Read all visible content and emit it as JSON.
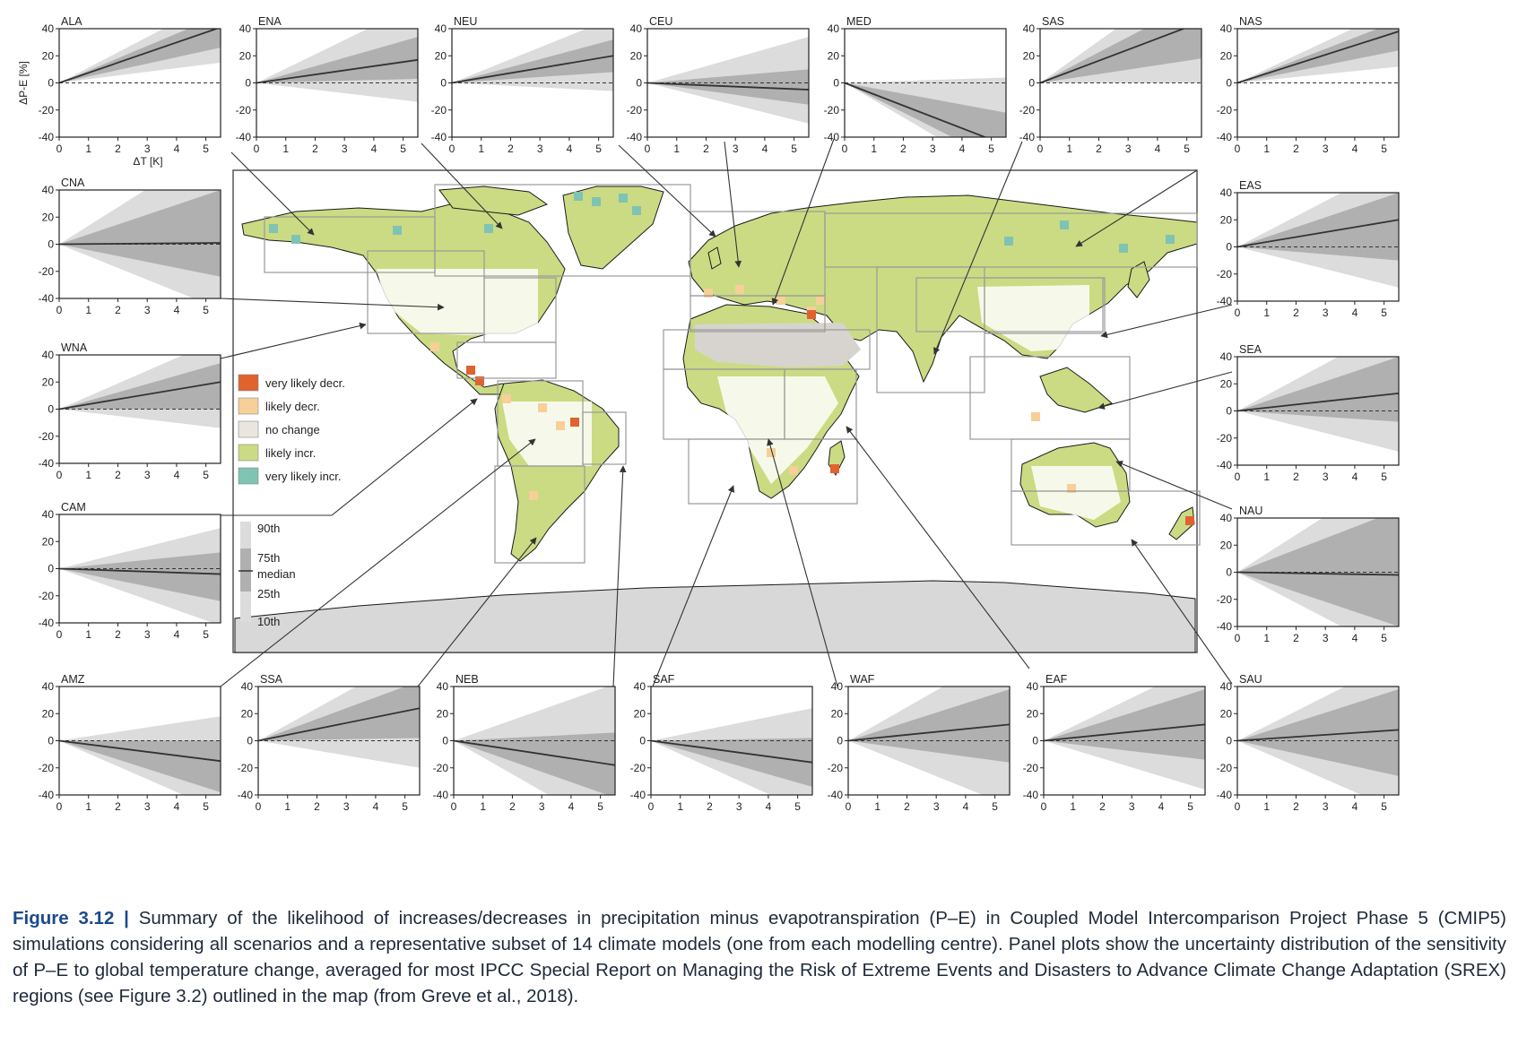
{
  "figure": {
    "label": "Figure 3.12",
    "separator": "|",
    "caption": "Summary of the likelihood of increases/decreases in precipitation minus evapotranspiration (P–E) in Coupled Model Intercomparison Project Phase 5 (CMIP5) simulations considering all scenarios and a representative subset of 14 climate models (one from each modelling centre). Panel plots show the uncertainty distribution of the sensitivity of P–E to global temperature change, averaged for most IPCC Special Report on Managing the Risk of Extreme Events and Disasters to Advance Climate Change Adaptation (SREX) regions (see Figure 3.2) outlined in the map (from Greve et al., 2018)."
  },
  "map_legend": {
    "categories": [
      {
        "label": "very likely decr.",
        "color": "#e0622f"
      },
      {
        "label": "likely decr.",
        "color": "#f7cf98"
      },
      {
        "label": "no change",
        "color": "#e9e5df"
      },
      {
        "label": "likely incr.",
        "color": "#cbdb83"
      },
      {
        "label": "very likely incr.",
        "color": "#7fc3b3"
      }
    ],
    "percentiles": [
      "90th",
      "75th",
      "median",
      "25th",
      "10th"
    ]
  },
  "colors": {
    "land_green": "#cbdb83",
    "ocean": "#ffffff",
    "antarctica": "#d8d8d8",
    "band_outer": "#dcdcdc",
    "band_inner": "#b0b0b0",
    "median": "#333333"
  },
  "chart_data": [
    {
      "type": "area",
      "region": "ALA",
      "xlabel": "ΔT [K]",
      "ylabel": "ΔP-E [%]",
      "xlim": [
        0,
        5.5
      ],
      "ylim": [
        -40,
        40
      ],
      "xticks": [
        0,
        1,
        2,
        3,
        4,
        5
      ],
      "yticks": [
        40,
        20,
        0,
        -20,
        -40
      ],
      "x": [
        0,
        5.5
      ],
      "p10": [
        0,
        15
      ],
      "p25": [
        0,
        26
      ],
      "median": [
        0,
        41
      ],
      "p75": [
        0,
        50
      ],
      "p90": [
        0,
        62
      ]
    },
    {
      "type": "area",
      "region": "ENA",
      "xlabel": "",
      "ylabel": "",
      "xlim": [
        0,
        5.5
      ],
      "ylim": [
        -40,
        40
      ],
      "xticks": [
        0,
        1,
        2,
        3,
        4,
        5
      ],
      "yticks": [
        40,
        20,
        0,
        -20,
        -40
      ],
      "x": [
        0,
        5.5
      ],
      "p10": [
        0,
        -14
      ],
      "p25": [
        0,
        3
      ],
      "median": [
        0,
        17
      ],
      "p75": [
        0,
        34
      ],
      "p90": [
        0,
        58
      ]
    },
    {
      "type": "area",
      "region": "NEU",
      "xlabel": "",
      "ylabel": "",
      "xlim": [
        0,
        5.5
      ],
      "ylim": [
        -40,
        40
      ],
      "xticks": [
        0,
        1,
        2,
        3,
        4,
        5
      ],
      "yticks": [
        40,
        20,
        0,
        -20,
        -40
      ],
      "x": [
        0,
        5.5
      ],
      "p10": [
        0,
        -6
      ],
      "p25": [
        0,
        8
      ],
      "median": [
        0,
        20
      ],
      "p75": [
        0,
        32
      ],
      "p90": [
        0,
        48
      ]
    },
    {
      "type": "area",
      "region": "CEU",
      "xlabel": "",
      "ylabel": "",
      "xlim": [
        0,
        5.5
      ],
      "ylim": [
        -40,
        40
      ],
      "xticks": [
        0,
        1,
        2,
        3,
        4,
        5
      ],
      "yticks": [
        40,
        20,
        0,
        -20,
        -40
      ],
      "x": [
        0,
        5.5
      ],
      "p10": [
        0,
        -30
      ],
      "p25": [
        0,
        -16
      ],
      "median": [
        0,
        -5
      ],
      "p75": [
        0,
        10
      ],
      "p90": [
        0,
        34
      ]
    },
    {
      "type": "area",
      "region": "MED",
      "xlabel": "",
      "ylabel": "",
      "xlim": [
        0,
        5.5
      ],
      "ylim": [
        -40,
        40
      ],
      "xticks": [
        0,
        1,
        2,
        3,
        4,
        5
      ],
      "yticks": [
        40,
        20,
        0,
        -20,
        -40
      ],
      "x": [
        0,
        5.5
      ],
      "p10": [
        0,
        -70
      ],
      "p25": [
        0,
        -60
      ],
      "median": [
        0,
        -46
      ],
      "p75": [
        0,
        -22
      ],
      "p90": [
        0,
        4
      ]
    },
    {
      "type": "area",
      "region": "SAS",
      "xlabel": "",
      "ylabel": "",
      "xlim": [
        0,
        5.5
      ],
      "ylim": [
        -40,
        40
      ],
      "xticks": [
        0,
        1,
        2,
        3,
        4,
        5
      ],
      "yticks": [
        40,
        20,
        0,
        -20,
        -40
      ],
      "x": [
        0,
        5.5
      ],
      "p10": [
        0,
        0
      ],
      "p25": [
        0,
        18
      ],
      "median": [
        0,
        45
      ],
      "p75": [
        0,
        62
      ],
      "p90": [
        0,
        85
      ]
    },
    {
      "type": "area",
      "region": "NAS",
      "xlabel": "",
      "ylabel": "",
      "xlim": [
        0,
        5.5
      ],
      "ylim": [
        -40,
        40
      ],
      "xticks": [
        0,
        1,
        2,
        3,
        4,
        5
      ],
      "yticks": [
        40,
        20,
        0,
        -20,
        -40
      ],
      "x": [
        0,
        5.5
      ],
      "p10": [
        0,
        12
      ],
      "p25": [
        0,
        24
      ],
      "median": [
        0,
        38
      ],
      "p75": [
        0,
        46
      ],
      "p90": [
        0,
        56
      ]
    },
    {
      "type": "area",
      "region": "CNA",
      "xlabel": "",
      "ylabel": "",
      "xlim": [
        0,
        5.5
      ],
      "ylim": [
        -40,
        40
      ],
      "xticks": [
        0,
        1,
        2,
        3,
        4,
        5
      ],
      "yticks": [
        40,
        20,
        0,
        -20,
        -40
      ],
      "x": [
        0,
        5.5
      ],
      "p10": [
        0,
        -48
      ],
      "p25": [
        0,
        -24
      ],
      "median": [
        0,
        1
      ],
      "p75": [
        0,
        40
      ],
      "p90": [
        0,
        75
      ]
    },
    {
      "type": "area",
      "region": "EAS",
      "xlabel": "",
      "ylabel": "",
      "xlim": [
        0,
        5.5
      ],
      "ylim": [
        -40,
        40
      ],
      "xticks": [
        0,
        1,
        2,
        3,
        4,
        5
      ],
      "yticks": [
        40,
        20,
        0,
        -20,
        -40
      ],
      "x": [
        0,
        5.5
      ],
      "p10": [
        0,
        -30
      ],
      "p25": [
        0,
        -10
      ],
      "median": [
        0,
        20
      ],
      "p75": [
        0,
        40
      ],
      "p90": [
        0,
        62
      ]
    },
    {
      "type": "area",
      "region": "WNA",
      "xlabel": "",
      "ylabel": "",
      "xlim": [
        0,
        5.5
      ],
      "ylim": [
        -40,
        40
      ],
      "xticks": [
        0,
        1,
        2,
        3,
        4,
        5
      ],
      "yticks": [
        40,
        20,
        0,
        -20,
        -40
      ],
      "x": [
        0,
        5.5
      ],
      "p10": [
        0,
        -14
      ],
      "p25": [
        0,
        0
      ],
      "median": [
        0,
        20
      ],
      "p75": [
        0,
        34
      ],
      "p90": [
        0,
        52
      ]
    },
    {
      "type": "area",
      "region": "SEA",
      "xlabel": "",
      "ylabel": "",
      "xlim": [
        0,
        5.5
      ],
      "ylim": [
        -40,
        40
      ],
      "xticks": [
        0,
        1,
        2,
        3,
        4,
        5
      ],
      "yticks": [
        40,
        20,
        0,
        -20,
        -40
      ],
      "x": [
        0,
        5.5
      ],
      "p10": [
        0,
        -30
      ],
      "p25": [
        0,
        -8
      ],
      "median": [
        0,
        13
      ],
      "p75": [
        0,
        40
      ],
      "p90": [
        0,
        64
      ]
    },
    {
      "type": "area",
      "region": "CAM",
      "xlabel": "",
      "ylabel": "",
      "xlim": [
        0,
        5.5
      ],
      "ylim": [
        -40,
        40
      ],
      "xticks": [
        0,
        1,
        2,
        3,
        4,
        5
      ],
      "yticks": [
        40,
        20,
        0,
        -20,
        -40
      ],
      "x": [
        0,
        5.5
      ],
      "p10": [
        0,
        -42
      ],
      "p25": [
        0,
        -24
      ],
      "median": [
        0,
        -4
      ],
      "p75": [
        0,
        12
      ],
      "p90": [
        0,
        30
      ]
    },
    {
      "type": "area",
      "region": "NAU",
      "xlabel": "",
      "ylabel": "",
      "xlim": [
        0,
        5.5
      ],
      "ylim": [
        -40,
        40
      ],
      "xticks": [
        0,
        1,
        2,
        3,
        4,
        5
      ],
      "yticks": [
        40,
        20,
        0,
        -20,
        -40
      ],
      "x": [
        0,
        5.5
      ],
      "p10": [
        0,
        -62
      ],
      "p25": [
        0,
        -40
      ],
      "median": [
        0,
        -2
      ],
      "p75": [
        0,
        46
      ],
      "p90": [
        0,
        76
      ]
    },
    {
      "type": "area",
      "region": "AMZ",
      "xlabel": "",
      "ylabel": "",
      "xlim": [
        0,
        5.5
      ],
      "ylim": [
        -40,
        40
      ],
      "xticks": [
        0,
        1,
        2,
        3,
        4,
        5
      ],
      "yticks": [
        40,
        20,
        0,
        -20,
        -40
      ],
      "x": [
        0,
        5.5
      ],
      "p10": [
        0,
        -52
      ],
      "p25": [
        0,
        -38
      ],
      "median": [
        0,
        -15
      ],
      "p75": [
        0,
        0
      ],
      "p90": [
        0,
        18
      ]
    },
    {
      "type": "area",
      "region": "SSA",
      "xlabel": "",
      "ylabel": "",
      "xlim": [
        0,
        5.5
      ],
      "ylim": [
        -40,
        40
      ],
      "xticks": [
        0,
        1,
        2,
        3,
        4,
        5
      ],
      "yticks": [
        40,
        20,
        0,
        -20,
        -40
      ],
      "x": [
        0,
        5.5
      ],
      "p10": [
        0,
        -20
      ],
      "p25": [
        0,
        2
      ],
      "median": [
        0,
        24
      ],
      "p75": [
        0,
        44
      ],
      "p90": [
        0,
        66
      ]
    },
    {
      "type": "area",
      "region": "NEB",
      "xlabel": "",
      "ylabel": "",
      "xlim": [
        0,
        5.5
      ],
      "ylim": [
        -40,
        40
      ],
      "xticks": [
        0,
        1,
        2,
        3,
        4,
        5
      ],
      "yticks": [
        40,
        20,
        0,
        -20,
        -40
      ],
      "x": [
        0,
        5.5
      ],
      "p10": [
        0,
        -68
      ],
      "p25": [
        0,
        -42
      ],
      "median": [
        0,
        -18
      ],
      "p75": [
        0,
        6
      ],
      "p90": [
        0,
        42
      ]
    },
    {
      "type": "area",
      "region": "SAF",
      "xlabel": "",
      "ylabel": "",
      "xlim": [
        0,
        5.5
      ],
      "ylim": [
        -40,
        40
      ],
      "xticks": [
        0,
        1,
        2,
        3,
        4,
        5
      ],
      "yticks": [
        40,
        20,
        0,
        -20,
        -40
      ],
      "x": [
        0,
        5.5
      ],
      "p10": [
        0,
        -54
      ],
      "p25": [
        0,
        -34
      ],
      "median": [
        0,
        -16
      ],
      "p75": [
        0,
        2
      ],
      "p90": [
        0,
        24
      ]
    },
    {
      "type": "area",
      "region": "WAF",
      "xlabel": "",
      "ylabel": "",
      "xlim": [
        0,
        5.5
      ],
      "ylim": [
        -40,
        40
      ],
      "xticks": [
        0,
        1,
        2,
        3,
        4,
        5
      ],
      "yticks": [
        40,
        20,
        0,
        -20,
        -40
      ],
      "x": [
        0,
        5.5
      ],
      "p10": [
        0,
        -48
      ],
      "p25": [
        0,
        -16
      ],
      "median": [
        0,
        12
      ],
      "p75": [
        0,
        38
      ],
      "p90": [
        0,
        68
      ]
    },
    {
      "type": "area",
      "region": "EAF",
      "xlabel": "",
      "ylabel": "",
      "xlim": [
        0,
        5.5
      ],
      "ylim": [
        -40,
        40
      ],
      "xticks": [
        0,
        1,
        2,
        3,
        4,
        5
      ],
      "yticks": [
        40,
        20,
        0,
        -20,
        -40
      ],
      "x": [
        0,
        5.5
      ],
      "p10": [
        0,
        -36
      ],
      "p25": [
        0,
        -14
      ],
      "median": [
        0,
        12
      ],
      "p75": [
        0,
        38
      ],
      "p90": [
        0,
        58
      ]
    },
    {
      "type": "area",
      "region": "SAU",
      "xlabel": "",
      "ylabel": "",
      "xlim": [
        0,
        5.5
      ],
      "ylim": [
        -40,
        40
      ],
      "xticks": [
        0,
        1,
        2,
        3,
        4,
        5
      ],
      "yticks": [
        40,
        20,
        0,
        -20,
        -40
      ],
      "x": [
        0,
        5.5
      ],
      "p10": [
        0,
        -52
      ],
      "p25": [
        0,
        -26
      ],
      "median": [
        0,
        8
      ],
      "p75": [
        0,
        38
      ],
      "p90": [
        0,
        60
      ]
    }
  ]
}
